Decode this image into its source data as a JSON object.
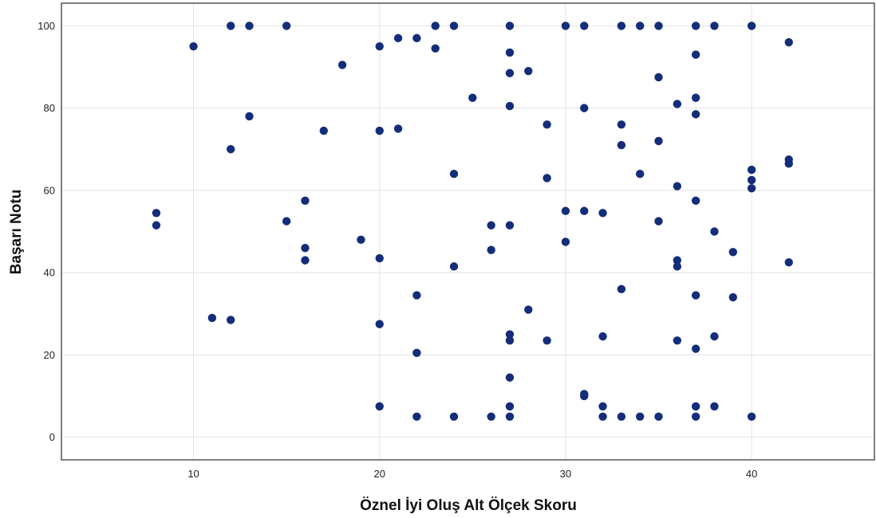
{
  "chart_data": {
    "type": "scatter",
    "title": "",
    "xlabel": "Öznel İyi Oluş Alt Ölçek Skoru",
    "ylabel": "Başarı Notu",
    "xlim": [
      2.9,
      46.6
    ],
    "ylim": [
      -5.5,
      105.5
    ],
    "xticks": [
      10,
      20,
      30,
      40
    ],
    "yticks": [
      0,
      20,
      40,
      60,
      80,
      100
    ],
    "grid": true,
    "marker_color": "#142d7a",
    "gridline_color": "#e3e3e3",
    "frame_color": "#555555",
    "series": [
      {
        "points": [
          [
            8,
            54.5
          ],
          [
            8,
            51.5
          ],
          [
            10,
            95
          ],
          [
            11,
            29
          ],
          [
            12,
            100
          ],
          [
            12,
            70
          ],
          [
            12,
            28.5
          ],
          [
            13,
            100
          ],
          [
            13,
            78
          ],
          [
            15,
            100
          ],
          [
            15,
            52.5
          ],
          [
            16,
            57.5
          ],
          [
            16,
            46
          ],
          [
            16,
            43
          ],
          [
            17,
            74.5
          ],
          [
            18,
            90.5
          ],
          [
            19,
            48
          ],
          [
            20,
            95
          ],
          [
            20,
            74.5
          ],
          [
            20,
            43.5
          ],
          [
            20,
            27.5
          ],
          [
            20,
            7.5
          ],
          [
            21,
            97
          ],
          [
            21,
            75
          ],
          [
            22,
            97
          ],
          [
            22,
            34.5
          ],
          [
            22,
            20.5
          ],
          [
            22,
            5
          ],
          [
            23,
            100
          ],
          [
            23,
            94.5
          ],
          [
            24,
            100
          ],
          [
            24,
            64
          ],
          [
            24,
            41.5
          ],
          [
            24,
            5
          ],
          [
            25,
            82.5
          ],
          [
            26,
            51.5
          ],
          [
            26,
            45.5
          ],
          [
            26,
            5
          ],
          [
            27,
            100
          ],
          [
            27,
            93.5
          ],
          [
            27,
            88.5
          ],
          [
            27,
            80.5
          ],
          [
            27,
            51.5
          ],
          [
            27,
            25
          ],
          [
            27,
            23.5
          ],
          [
            27,
            14.5
          ],
          [
            27,
            7.5
          ],
          [
            27,
            5
          ],
          [
            28,
            89
          ],
          [
            28,
            31
          ],
          [
            29,
            76
          ],
          [
            29,
            63
          ],
          [
            29,
            23.5
          ],
          [
            30,
            100
          ],
          [
            30,
            55
          ],
          [
            30,
            47.5
          ],
          [
            31,
            100
          ],
          [
            31,
            80
          ],
          [
            31,
            55
          ],
          [
            31,
            10.5
          ],
          [
            31,
            10
          ],
          [
            32,
            54.5
          ],
          [
            32,
            24.5
          ],
          [
            32,
            7.5
          ],
          [
            32,
            5
          ],
          [
            33,
            100
          ],
          [
            33,
            76
          ],
          [
            33,
            71
          ],
          [
            33,
            36
          ],
          [
            33,
            5
          ],
          [
            34,
            100
          ],
          [
            34,
            64
          ],
          [
            34,
            5
          ],
          [
            35,
            100
          ],
          [
            35,
            87.5
          ],
          [
            35,
            72
          ],
          [
            35,
            52.5
          ],
          [
            35,
            5
          ],
          [
            36,
            81
          ],
          [
            36,
            61
          ],
          [
            36,
            43
          ],
          [
            36,
            41.5
          ],
          [
            36,
            23.5
          ],
          [
            37,
            100
          ],
          [
            37,
            93
          ],
          [
            37,
            82.5
          ],
          [
            37,
            78.5
          ],
          [
            37,
            57.5
          ],
          [
            37,
            34.5
          ],
          [
            37,
            21.5
          ],
          [
            37,
            7.5
          ],
          [
            37,
            5
          ],
          [
            38,
            100
          ],
          [
            38,
            50
          ],
          [
            38,
            24.5
          ],
          [
            38,
            7.5
          ],
          [
            39,
            45
          ],
          [
            39,
            34
          ],
          [
            40,
            100
          ],
          [
            40,
            65
          ],
          [
            40,
            62.5
          ],
          [
            40,
            60.5
          ],
          [
            40,
            5
          ],
          [
            42,
            96
          ],
          [
            42,
            67.5
          ],
          [
            42,
            66.5
          ],
          [
            42,
            42.5
          ]
        ]
      }
    ]
  }
}
